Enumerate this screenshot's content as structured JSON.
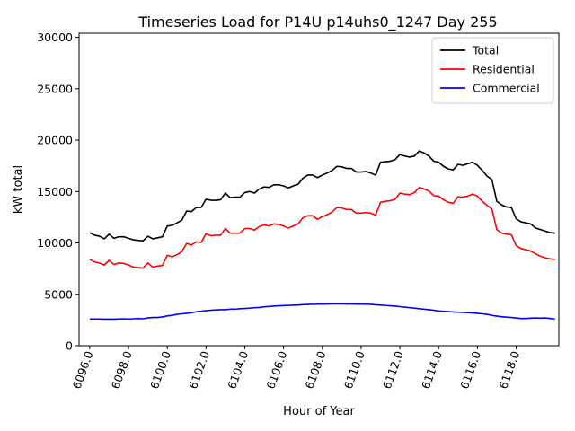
{
  "chart_data": {
    "type": "line",
    "title": "Timeseries Load for P14U p14uhs0_1247  Day 255",
    "xlabel": "Hour of Year",
    "ylabel": "kW total",
    "xlim": [
      6095.45,
      6120.2
    ],
    "ylim": [
      0,
      30400
    ],
    "x_ticks": [
      6096,
      6098,
      6100,
      6102,
      6104,
      6106,
      6108,
      6110,
      6112,
      6114,
      6116,
      6118
    ],
    "x_tick_labels": [
      "6096.0",
      "6098.0",
      "6100.0",
      "6102.0",
      "6104.0",
      "6106.0",
      "6108.0",
      "6110.0",
      "6112.0",
      "6114.0",
      "6116.0",
      "6118.0"
    ],
    "y_ticks": [
      0,
      5000,
      10000,
      15000,
      20000,
      25000,
      30000
    ],
    "y_tick_labels": [
      "0",
      "5000",
      "10000",
      "15000",
      "20000",
      "25000",
      "30000"
    ],
    "grid": false,
    "legend_position": "top-right",
    "x_start": 6096,
    "x_step": 0.25,
    "series": [
      {
        "name": "Total",
        "color": "#000000",
        "values": [
          11000,
          10750,
          10650,
          10400,
          10850,
          10450,
          10600,
          10600,
          10450,
          10300,
          10250,
          10200,
          10650,
          10400,
          10500,
          10600,
          11650,
          11700,
          11950,
          12200,
          13100,
          13050,
          13450,
          13450,
          14250,
          14150,
          14150,
          14200,
          14850,
          14400,
          14450,
          14450,
          14900,
          15000,
          14850,
          15250,
          15450,
          15400,
          15650,
          15650,
          15550,
          15350,
          15550,
          15700,
          16300,
          16600,
          16600,
          16350,
          16600,
          16800,
          17050,
          17450,
          17400,
          17250,
          17250,
          16900,
          16900,
          16950,
          16800,
          16600,
          17850,
          17900,
          17950,
          18100,
          18600,
          18450,
          18350,
          18450,
          18950,
          18750,
          18450,
          17950,
          17850,
          17450,
          17200,
          17100,
          17650,
          17550,
          17700,
          17850,
          17550,
          17050,
          16500,
          16150,
          14050,
          13700,
          13500,
          13450,
          12350,
          12050,
          11950,
          11850,
          11450,
          11300,
          11150,
          11000,
          10950
        ]
      },
      {
        "name": "Residential",
        "color": "#ff0000",
        "values": [
          8400,
          8150,
          8050,
          7850,
          8300,
          7900,
          8050,
          8000,
          7850,
          7650,
          7600,
          7550,
          8050,
          7650,
          7750,
          7800,
          8800,
          8650,
          8850,
          9150,
          9950,
          9800,
          10100,
          10050,
          10900,
          10700,
          10750,
          10750,
          11400,
          10950,
          10950,
          10950,
          11400,
          11400,
          11250,
          11600,
          11750,
          11650,
          11850,
          11800,
          11650,
          11450,
          11650,
          11850,
          12450,
          12650,
          12650,
          12300,
          12550,
          12750,
          13000,
          13450,
          13400,
          13250,
          13250,
          12900,
          12900,
          12950,
          12900,
          12700,
          13950,
          14050,
          14100,
          14250,
          14850,
          14750,
          14700,
          14900,
          15400,
          15250,
          15050,
          14600,
          14550,
          14200,
          13950,
          13850,
          14500,
          14450,
          14550,
          14750,
          14550,
          14050,
          13650,
          13300,
          11300,
          10950,
          10850,
          10800,
          9750,
          9450,
          9350,
          9200,
          8950,
          8700,
          8550,
          8450,
          8400
        ]
      },
      {
        "name": "Commercial",
        "color": "#0000ff",
        "values": [
          2600,
          2600,
          2600,
          2580,
          2580,
          2580,
          2600,
          2620,
          2600,
          2620,
          2650,
          2620,
          2700,
          2750,
          2750,
          2800,
          2900,
          2950,
          3050,
          3100,
          3150,
          3200,
          3300,
          3350,
          3400,
          3450,
          3480,
          3500,
          3500,
          3550,
          3550,
          3600,
          3620,
          3650,
          3700,
          3720,
          3780,
          3820,
          3850,
          3880,
          3900,
          3920,
          3940,
          3960,
          3990,
          4010,
          4030,
          4040,
          4050,
          4060,
          4070,
          4070,
          4070,
          4060,
          4060,
          4050,
          4040,
          4030,
          4020,
          3980,
          3950,
          3920,
          3880,
          3850,
          3800,
          3750,
          3700,
          3650,
          3600,
          3550,
          3500,
          3450,
          3380,
          3350,
          3320,
          3280,
          3260,
          3240,
          3220,
          3180,
          3150,
          3100,
          3050,
          2950,
          2880,
          2820,
          2780,
          2750,
          2700,
          2650,
          2650,
          2680,
          2700,
          2680,
          2700,
          2650,
          2600
        ]
      }
    ]
  }
}
